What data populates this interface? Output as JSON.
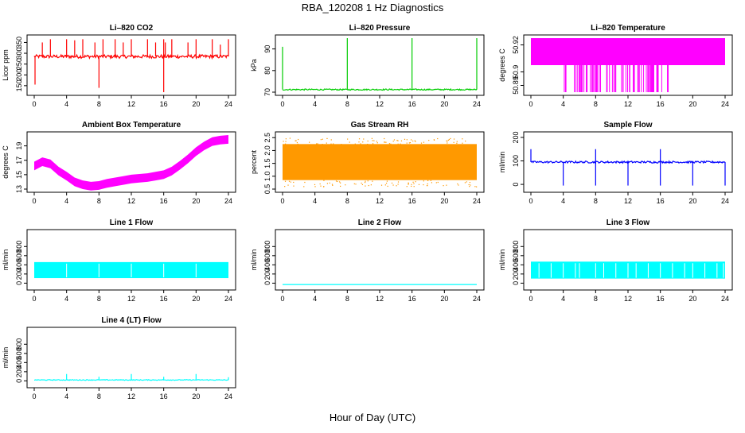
{
  "figure": {
    "title": "RBA_120208  1 Hz Diagnostics",
    "xlabel": "Hour of Day (UTC)"
  },
  "chart_data": [
    {
      "type": "line",
      "title": "Li–820 CO2",
      "ylabel": "Licor ppm",
      "color": "#ff0000",
      "xlim": [
        0,
        24
      ],
      "xticks": [
        "0",
        "4",
        "8",
        "12",
        "16",
        "20",
        "24"
      ],
      "ylim": [
        120,
        370
      ],
      "yticks": [
        "150",
        "200",
        "250",
        "300",
        "350"
      ],
      "series": [
        {
          "name": "CO2",
          "baseline": 285,
          "noise": 8,
          "spikes_up": [
            [
              1.0,
              350
            ],
            [
              2.0,
              365
            ],
            [
              4.0,
              365
            ],
            [
              5.0,
              360
            ],
            [
              6.0,
              365
            ],
            [
              7.5,
              350
            ],
            [
              8.5,
              365
            ],
            [
              10.0,
              365
            ],
            [
              11.0,
              350
            ],
            [
              12.0,
              365
            ],
            [
              14.0,
              365
            ],
            [
              15.0,
              350
            ],
            [
              16.0,
              365
            ],
            [
              16.2,
              350
            ],
            [
              17.0,
              365
            ],
            [
              19.0,
              350
            ],
            [
              20.0,
              365
            ],
            [
              22.0,
              365
            ],
            [
              23.0,
              340
            ],
            [
              24.0,
              365
            ]
          ],
          "spikes_down": [
            [
              0.1,
              155
            ],
            [
              8.0,
              140
            ],
            [
              16.0,
              120
            ]
          ]
        }
      ]
    },
    {
      "type": "line",
      "title": "Li–820 Pressure",
      "ylabel": "kPa",
      "color": "#00cc00",
      "xlim": [
        0,
        24
      ],
      "xticks": [
        "0",
        "4",
        "8",
        "12",
        "16",
        "20",
        "24"
      ],
      "ylim": [
        70,
        95
      ],
      "yticks": [
        "70",
        "80",
        "90"
      ],
      "series": [
        {
          "name": "Pressure",
          "baseline": 71.2,
          "noise": 0.3,
          "spikes_up": [
            [
              0.0,
              91
            ],
            [
              8.0,
              95
            ],
            [
              16.0,
              95
            ],
            [
              24.0,
              95
            ]
          ],
          "spikes_down": []
        }
      ]
    },
    {
      "type": "band",
      "title": "Li–820 Temperature",
      "ylabel": "degrees C",
      "color": "#ff00ff",
      "xlim": [
        0,
        24
      ],
      "xticks": [
        "0",
        "4",
        "8",
        "12",
        "16",
        "20",
        "24"
      ],
      "ylim": [
        50.885,
        50.925
      ],
      "yticks": [
        "50.89",
        "50.9",
        "50.92"
      ],
      "band": {
        "low": 50.905,
        "high": 50.925,
        "dip_low": 50.885,
        "dip_start": 4.0,
        "dip_end": 17.0
      }
    },
    {
      "type": "band",
      "title": "Ambient Box Temperature",
      "ylabel": "degrees C",
      "color": "#ff00ff",
      "xlim": [
        0,
        24
      ],
      "xticks": [
        "0",
        "4",
        "8",
        "12",
        "16",
        "20",
        "24"
      ],
      "ylim": [
        13,
        20.5
      ],
      "yticks": [
        "13",
        "15",
        "17",
        "19"
      ],
      "curve": [
        [
          0,
          16.2
        ],
        [
          1,
          16.8
        ],
        [
          2,
          16.5
        ],
        [
          3,
          15.5
        ],
        [
          4,
          14.8
        ],
        [
          5,
          14.0
        ],
        [
          6,
          13.6
        ],
        [
          7,
          13.4
        ],
        [
          8,
          13.5
        ],
        [
          9,
          13.8
        ],
        [
          10,
          14.0
        ],
        [
          11,
          14.2
        ],
        [
          12,
          14.4
        ],
        [
          13,
          14.5
        ],
        [
          14,
          14.6
        ],
        [
          15,
          14.8
        ],
        [
          16,
          15.0
        ],
        [
          17,
          15.5
        ],
        [
          18,
          16.3
        ],
        [
          19,
          17.2
        ],
        [
          20,
          18.2
        ],
        [
          21,
          19.0
        ],
        [
          22,
          19.6
        ],
        [
          23,
          19.8
        ],
        [
          24,
          19.9
        ]
      ],
      "half_width": 0.6
    },
    {
      "type": "band",
      "title": "Gas Stream RH",
      "ylabel": "percent",
      "color": "#ff9900",
      "xlim": [
        0,
        24
      ],
      "xticks": [
        "0",
        "4",
        "8",
        "12",
        "16",
        "20",
        "24"
      ],
      "ylim": [
        0.5,
        2.6
      ],
      "yticks": [
        "0.5",
        "1.0",
        "1.5",
        "2.0",
        "2.5"
      ],
      "band": {
        "low": 0.85,
        "high": 2.25,
        "drift": 0.1
      }
    },
    {
      "type": "line",
      "title": "Sample Flow",
      "ylabel": "ml/min",
      "color": "#0000ff",
      "xlim": [
        0,
        24
      ],
      "xticks": [
        "0",
        "4",
        "8",
        "12",
        "16",
        "20",
        "24"
      ],
      "ylim": [
        -20,
        210
      ],
      "yticks": [
        "0",
        "100",
        "200"
      ],
      "series": [
        {
          "name": "Sample",
          "baseline": 95,
          "noise": 4,
          "spikes_up": [
            [
              0.0,
              150
            ],
            [
              8.0,
              150
            ],
            [
              16.0,
              150
            ]
          ],
          "spikes_down": [
            [
              4.0,
              -5
            ],
            [
              8.0,
              -5
            ],
            [
              12.0,
              -5
            ],
            [
              16.0,
              -5
            ],
            [
              20.0,
              -5
            ],
            [
              24.0,
              -5
            ]
          ]
        }
      ]
    },
    {
      "type": "band",
      "title": "Line 1 Flow",
      "ylabel": "ml/min",
      "color": "#00ffff",
      "xlim": [
        0,
        24
      ],
      "xticks": [
        "0",
        "4",
        "8",
        "12",
        "16",
        "20",
        "24"
      ],
      "ylim": [
        -80,
        1100
      ],
      "yticks": [
        "0",
        "200",
        "400",
        "600",
        "800"
      ],
      "band": {
        "low": 110,
        "high": 460,
        "gaps": [
          4.0,
          8.0,
          12.0,
          16.0,
          20.0
        ]
      }
    },
    {
      "type": "line",
      "title": "Line 2 Flow",
      "ylabel": "ml/min",
      "color": "#00ffff",
      "xlim": [
        0,
        24
      ],
      "xticks": [
        "0",
        "4",
        "8",
        "12",
        "16",
        "20",
        "24"
      ],
      "ylim": [
        -80,
        1100
      ],
      "yticks": [
        "0",
        "200",
        "400",
        "600",
        "800"
      ],
      "series": [
        {
          "name": "Line2",
          "baseline": -30,
          "noise": 0,
          "spikes_up": [],
          "spikes_down": []
        }
      ]
    },
    {
      "type": "band",
      "title": "Line 3 Flow",
      "ylabel": "ml/min",
      "color": "#00ffff",
      "xlim": [
        0,
        24
      ],
      "xticks": [
        "0",
        "4",
        "8",
        "12",
        "16",
        "20",
        "24"
      ],
      "ylim": [
        -80,
        1100
      ],
      "yticks": [
        "0",
        "200",
        "400",
        "600",
        "800"
      ],
      "band": {
        "low": 100,
        "high": 470,
        "gaps": [
          1.0,
          2.5,
          4.0,
          5.5,
          6.0,
          8.0,
          9.0,
          10.5,
          12.0,
          13.0,
          14.5,
          16.0,
          17.5,
          19.0,
          20.0,
          21.5,
          23.0,
          23.8
        ]
      }
    },
    {
      "type": "line",
      "title": "Line 4 (LT) Flow",
      "ylabel": "ml/min",
      "color": "#00ffff",
      "xlim": [
        0,
        24
      ],
      "xticks": [
        "0",
        "4",
        "8",
        "12",
        "16",
        "20",
        "24"
      ],
      "ylim": [
        -80,
        1100
      ],
      "yticks": [
        "0",
        "200",
        "400",
        "600",
        "800"
      ],
      "series": [
        {
          "name": "Line4",
          "baseline": 20,
          "noise": 8,
          "spikes_up": [
            [
              4.0,
              150
            ],
            [
              8.0,
              90
            ],
            [
              12.0,
              150
            ],
            [
              16.0,
              90
            ],
            [
              20.0,
              150
            ],
            [
              24.0,
              80
            ]
          ],
          "spikes_down": []
        }
      ]
    }
  ]
}
